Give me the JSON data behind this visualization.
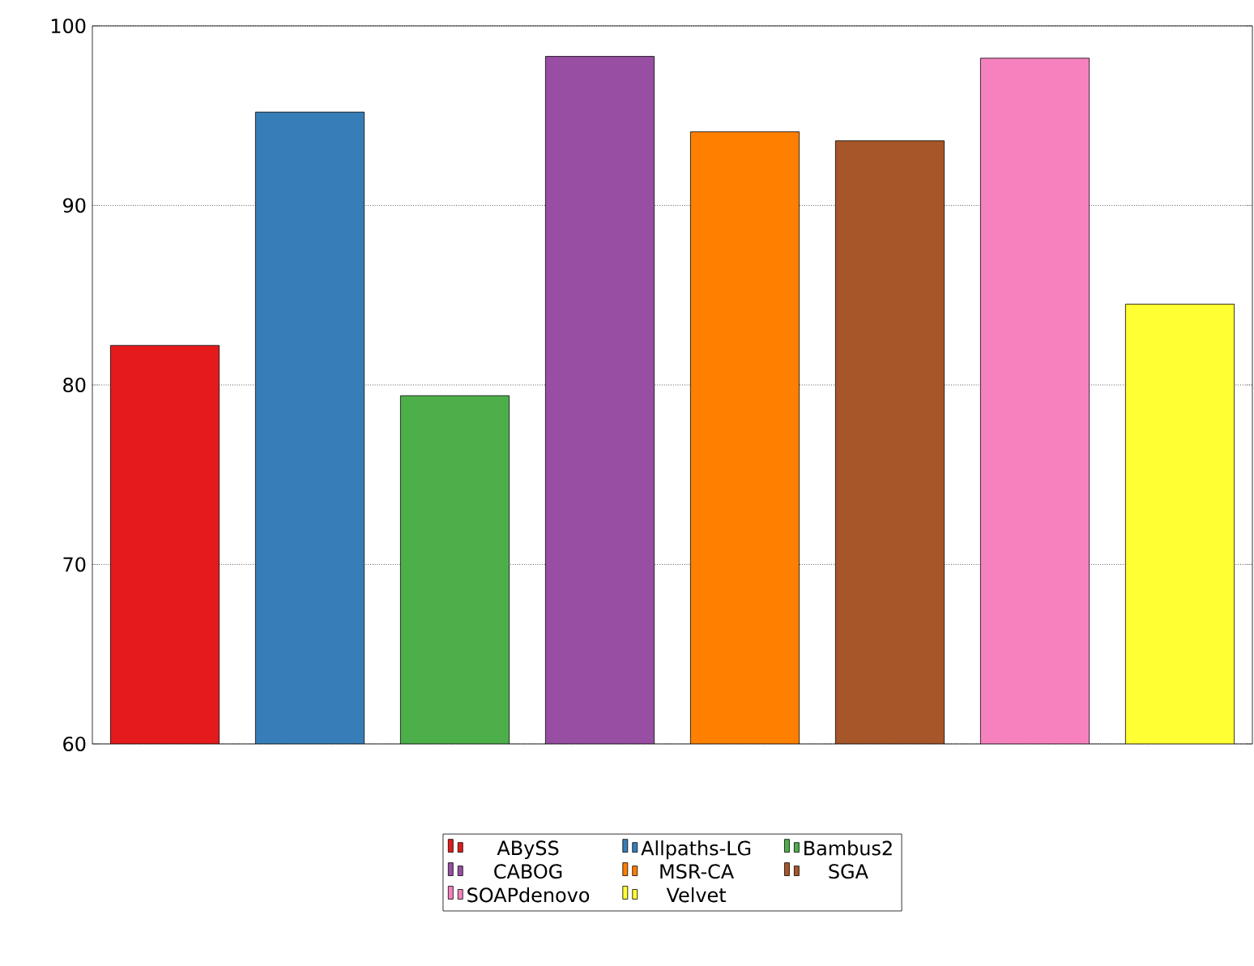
{
  "chart_data": {
    "type": "bar",
    "categories": [
      null,
      null,
      null,
      null,
      null,
      null,
      null,
      null
    ],
    "series": [
      {
        "name": "ABySS",
        "color": "#e41a1c",
        "values": [
          82.2,
          null,
          null,
          null,
          null,
          null,
          null,
          null
        ]
      },
      {
        "name": "Allpaths-LG",
        "color": "#377eb8",
        "values": [
          null,
          95.2,
          null,
          null,
          null,
          null,
          null,
          null
        ]
      },
      {
        "name": "Bambus2",
        "color": "#4daf4a",
        "values": [
          null,
          null,
          79.4,
          null,
          null,
          null,
          null,
          null
        ]
      },
      {
        "name": "CABOG",
        "color": "#984ea3",
        "values": [
          null,
          null,
          null,
          98.3,
          null,
          null,
          null,
          null
        ]
      },
      {
        "name": "MSR-CA",
        "color": "#ff7f00",
        "values": [
          null,
          null,
          null,
          null,
          94.1,
          null,
          null,
          null
        ]
      },
      {
        "name": "SGA",
        "color": "#a65628",
        "values": [
          null,
          null,
          null,
          null,
          null,
          93.6,
          null,
          null
        ]
      },
      {
        "name": "SOAPdenovo",
        "color": "#f781bf",
        "values": [
          null,
          null,
          null,
          null,
          null,
          null,
          98.2,
          null
        ]
      },
      {
        "name": "Velvet",
        "color": "#ffff33",
        "values": [
          null,
          null,
          null,
          null,
          null,
          null,
          null,
          84.5
        ]
      }
    ],
    "ylim": [
      60,
      100
    ],
    "yticks": [
      60,
      70,
      80,
      90,
      100
    ],
    "grid": "y",
    "legend": "bottom",
    "tick_labels": "y"
  }
}
